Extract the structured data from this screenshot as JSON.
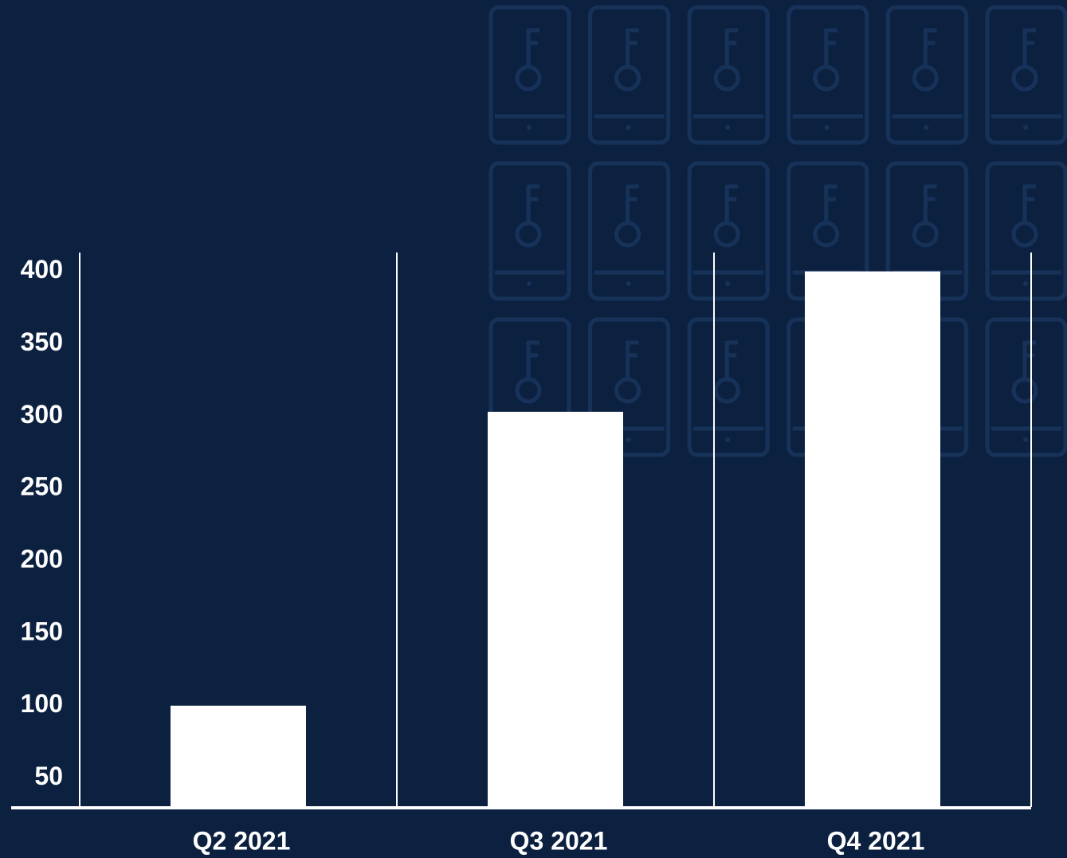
{
  "chart_data": {
    "type": "bar",
    "categories": [
      "Q2 2021",
      "Q3 2021",
      "Q4 2021"
    ],
    "values": [
      100,
      303,
      400
    ],
    "color": "#ffffff",
    "ylim": [
      30,
      413
    ],
    "yticks": [
      50,
      100,
      150,
      200,
      250,
      300,
      350,
      400
    ],
    "grid": false
  }
}
